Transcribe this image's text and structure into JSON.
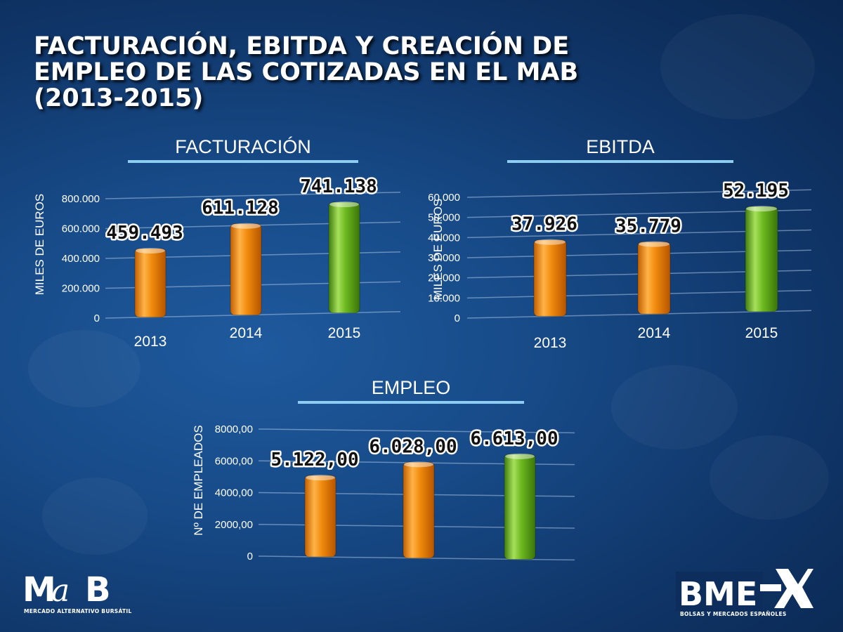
{
  "title_lines": [
    "FACTURACIÓN, EBITDA Y CREACIÓN DE",
    "EMPLEO DE LAS COTIZADAS EN EL MAB",
    "(2013-2015)"
  ],
  "colors": {
    "orange": "#f08a0c",
    "green": "#6cb81f",
    "rule": "#8ecdf2",
    "background": "#174a87"
  },
  "logos": {
    "mab": {
      "wordmark": "MaB",
      "subtitle": "MERCADO ALTERNATIVO BURSÁTIL"
    },
    "bme": {
      "wordmark": "BME",
      "subtitle": "BOLSAS Y MERCADOS ESPAÑOLES"
    }
  },
  "chart_data": [
    {
      "type": "bar",
      "title": "FACTURACIÓN",
      "ylabel": "MILES DE EUROS",
      "categories": [
        "2013",
        "2014",
        "2015"
      ],
      "values": [
        459493,
        611128,
        741138
      ],
      "data_labels": [
        "459.493",
        "611.128",
        "741.138"
      ],
      "bar_colors": [
        "orange",
        "orange",
        "green"
      ],
      "ylim": [
        0,
        800000
      ],
      "yticks": [
        0,
        200000,
        400000,
        600000,
        800000
      ],
      "ytick_labels": [
        "0",
        "200.000",
        "400.000",
        "600.000",
        "800.000"
      ],
      "grid": true
    },
    {
      "type": "bar",
      "title": "EBITDA",
      "ylabel": "MILES DE EUROS",
      "categories": [
        "2013",
        "2014",
        "2015"
      ],
      "values": [
        37926,
        35779,
        52195
      ],
      "data_labels": [
        "37.926",
        "35.779",
        "52.195"
      ],
      "bar_colors": [
        "orange",
        "orange",
        "green"
      ],
      "ylim": [
        0,
        60000
      ],
      "yticks": [
        0,
        10000,
        20000,
        30000,
        40000,
        50000,
        60000
      ],
      "ytick_labels": [
        "0",
        "10.000",
        "20.000",
        "30.000",
        "40.000",
        "50.000",
        "60.000"
      ],
      "grid": true
    },
    {
      "type": "bar",
      "title": "EMPLEO",
      "ylabel": "Nº DE EMPLEADOS",
      "categories": [
        "",
        "",
        ""
      ],
      "values": [
        5122,
        6028,
        6613
      ],
      "data_labels": [
        "5.122,00",
        "6.028,00",
        "6.613,00"
      ],
      "bar_colors": [
        "orange",
        "orange",
        "green"
      ],
      "ylim": [
        0,
        8000
      ],
      "yticks": [
        0,
        2000,
        4000,
        6000,
        8000
      ],
      "ytick_labels": [
        "0",
        "2000,00",
        "4000,00",
        "6000,00",
        "8000,00"
      ],
      "grid": true
    }
  ]
}
